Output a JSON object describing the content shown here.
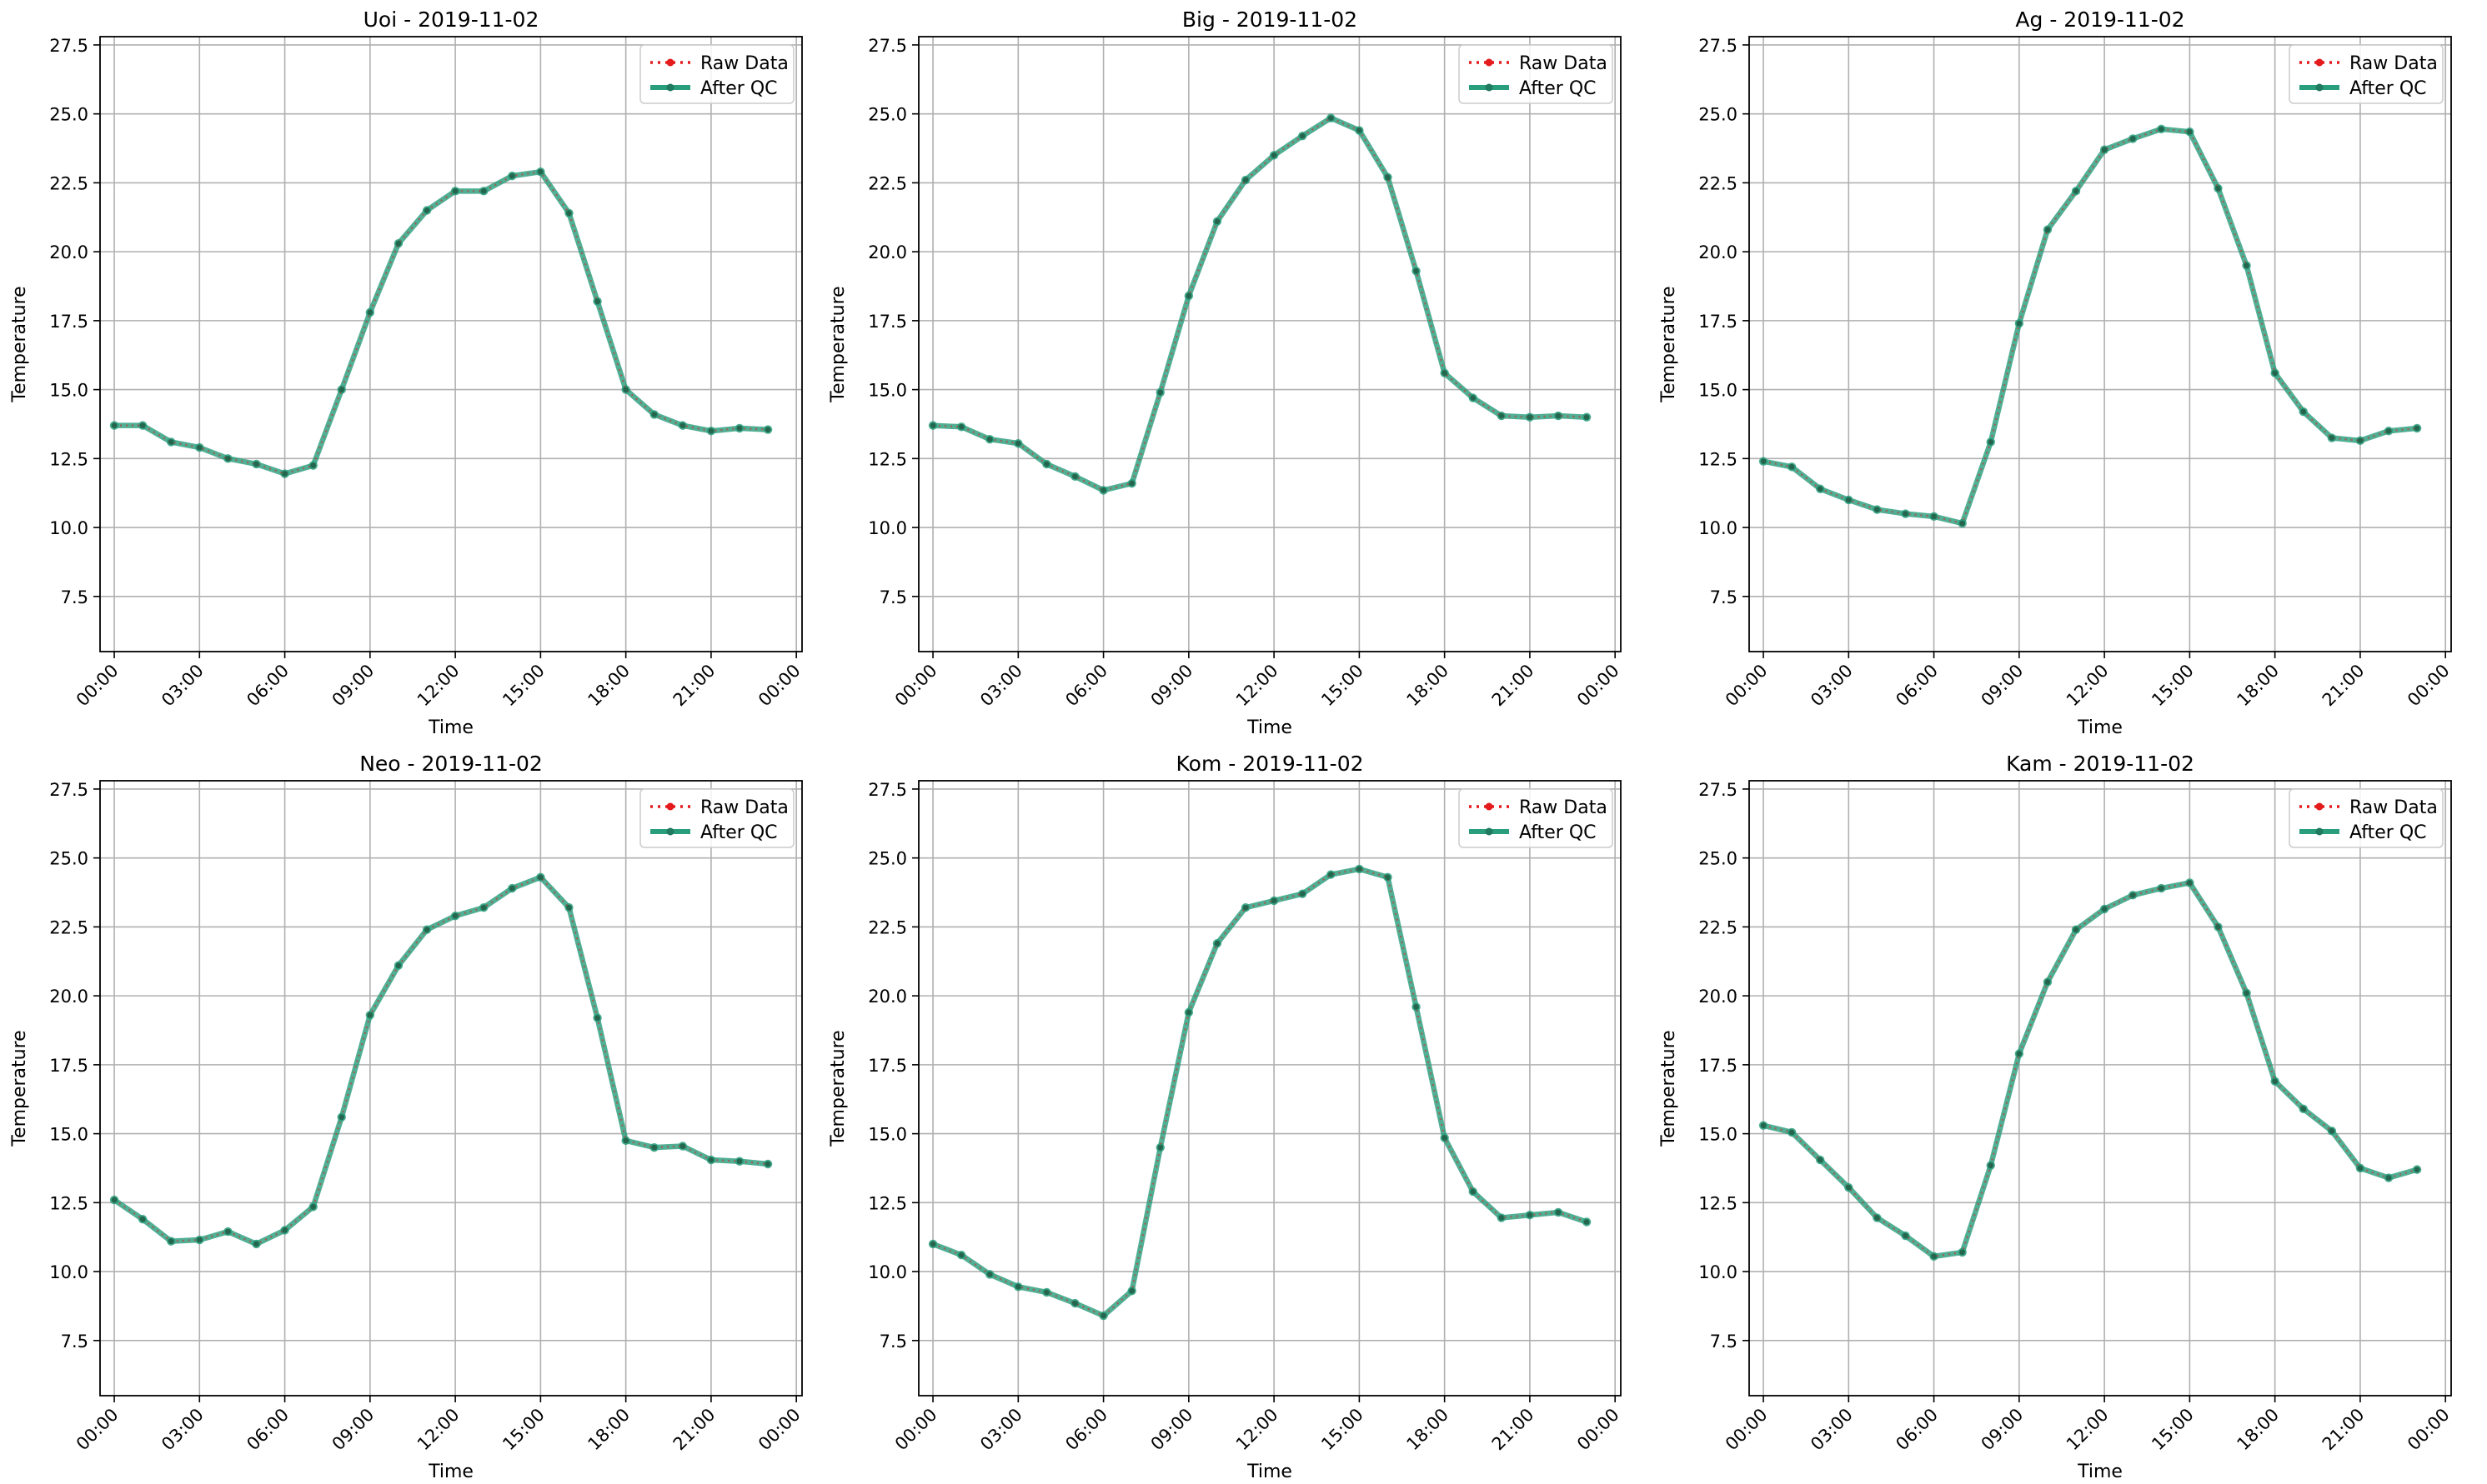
{
  "figure": {
    "xlabel": "Time",
    "ylabel": "Temperature",
    "legend": {
      "raw_label": "Raw Data",
      "qc_label": "After QC",
      "placement": "top-right"
    },
    "colors": {
      "raw": "#e41a1c",
      "qc": "#2a9d7c",
      "grid": "#b0b0b0",
      "axis": "#000000"
    }
  },
  "chart_data": [
    {
      "type": "line",
      "title": "Uoi - 2019-11-02",
      "xlabel": "Time",
      "ylabel": "Temperature",
      "x": [
        "00:00",
        "01:00",
        "02:00",
        "03:00",
        "04:00",
        "05:00",
        "06:00",
        "07:00",
        "08:00",
        "09:00",
        "10:00",
        "11:00",
        "12:00",
        "13:00",
        "14:00",
        "15:00",
        "16:00",
        "17:00",
        "18:00",
        "19:00",
        "20:00",
        "21:00",
        "22:00",
        "23:00"
      ],
      "xticks": [
        "00:00",
        "03:00",
        "06:00",
        "09:00",
        "12:00",
        "15:00",
        "18:00",
        "21:00",
        "00:00"
      ],
      "xlim_hours": [
        -0.5,
        24.2
      ],
      "ylim": [
        5.5,
        27.8
      ],
      "yticks": [
        "7.5",
        "10.0",
        "12.5",
        "15.0",
        "17.5",
        "20.0",
        "22.5",
        "25.0",
        "27.5"
      ],
      "grid": true,
      "legend": "top-right",
      "series": [
        {
          "name": "Raw Data",
          "values": [
            13.7,
            13.7,
            13.1,
            12.9,
            12.5,
            12.3,
            11.95,
            12.25,
            15.0,
            17.8,
            20.3,
            21.5,
            22.2,
            22.2,
            22.75,
            22.9,
            21.4,
            18.2,
            15.0,
            14.1,
            13.7,
            13.5,
            13.6,
            13.55
          ]
        },
        {
          "name": "After QC",
          "values": [
            13.7,
            13.7,
            13.1,
            12.9,
            12.5,
            12.3,
            11.95,
            12.25,
            15.0,
            17.8,
            20.3,
            21.5,
            22.2,
            22.2,
            22.75,
            22.9,
            21.4,
            18.2,
            15.0,
            14.1,
            13.7,
            13.5,
            13.6,
            13.55
          ]
        }
      ]
    },
    {
      "type": "line",
      "title": "Big - 2019-11-02",
      "xlabel": "Time",
      "ylabel": "Temperature",
      "x": [
        "00:00",
        "01:00",
        "02:00",
        "03:00",
        "04:00",
        "05:00",
        "06:00",
        "07:00",
        "08:00",
        "09:00",
        "10:00",
        "11:00",
        "12:00",
        "13:00",
        "14:00",
        "15:00",
        "16:00",
        "17:00",
        "18:00",
        "19:00",
        "20:00",
        "21:00",
        "22:00",
        "23:00"
      ],
      "xticks": [
        "00:00",
        "03:00",
        "06:00",
        "09:00",
        "12:00",
        "15:00",
        "18:00",
        "21:00",
        "00:00"
      ],
      "xlim_hours": [
        -0.5,
        24.2
      ],
      "ylim": [
        5.5,
        27.8
      ],
      "yticks": [
        "7.5",
        "10.0",
        "12.5",
        "15.0",
        "17.5",
        "20.0",
        "22.5",
        "25.0",
        "27.5"
      ],
      "grid": true,
      "legend": "top-right",
      "series": [
        {
          "name": "Raw Data",
          "values": [
            13.7,
            13.65,
            13.2,
            13.05,
            12.3,
            11.85,
            11.35,
            11.6,
            14.9,
            18.4,
            21.1,
            22.6,
            23.5,
            24.2,
            24.85,
            24.4,
            22.7,
            19.3,
            15.6,
            14.7,
            14.05,
            14.0,
            14.05,
            14.0
          ]
        },
        {
          "name": "After QC",
          "values": [
            13.7,
            13.65,
            13.2,
            13.05,
            12.3,
            11.85,
            11.35,
            11.6,
            14.9,
            18.4,
            21.1,
            22.6,
            23.5,
            24.2,
            24.85,
            24.4,
            22.7,
            19.3,
            15.6,
            14.7,
            14.05,
            14.0,
            14.05,
            14.0
          ]
        }
      ]
    },
    {
      "type": "line",
      "title": "Ag - 2019-11-02",
      "xlabel": "Time",
      "ylabel": "Temperature",
      "x": [
        "00:00",
        "01:00",
        "02:00",
        "03:00",
        "04:00",
        "05:00",
        "06:00",
        "07:00",
        "08:00",
        "09:00",
        "10:00",
        "11:00",
        "12:00",
        "13:00",
        "14:00",
        "15:00",
        "16:00",
        "17:00",
        "18:00",
        "19:00",
        "20:00",
        "21:00",
        "22:00",
        "23:00"
      ],
      "xticks": [
        "00:00",
        "03:00",
        "06:00",
        "09:00",
        "12:00",
        "15:00",
        "18:00",
        "21:00",
        "00:00"
      ],
      "xlim_hours": [
        -0.5,
        24.2
      ],
      "ylim": [
        5.5,
        27.8
      ],
      "yticks": [
        "7.5",
        "10.0",
        "12.5",
        "15.0",
        "17.5",
        "20.0",
        "22.5",
        "25.0",
        "27.5"
      ],
      "grid": true,
      "legend": "top-right",
      "series": [
        {
          "name": "Raw Data",
          "values": [
            12.4,
            12.2,
            11.4,
            11.0,
            10.65,
            10.5,
            10.4,
            10.15,
            13.1,
            17.4,
            20.8,
            22.2,
            23.7,
            24.1,
            24.45,
            24.35,
            22.3,
            19.5,
            15.6,
            14.2,
            13.25,
            13.15,
            13.5,
            13.6
          ]
        },
        {
          "name": "After QC",
          "values": [
            12.4,
            12.2,
            11.4,
            11.0,
            10.65,
            10.5,
            10.4,
            10.15,
            13.1,
            17.4,
            20.8,
            22.2,
            23.7,
            24.1,
            24.45,
            24.35,
            22.3,
            19.5,
            15.6,
            14.2,
            13.25,
            13.15,
            13.5,
            13.6
          ]
        }
      ]
    },
    {
      "type": "line",
      "title": "Neo - 2019-11-02",
      "xlabel": "Time",
      "ylabel": "Temperature",
      "x": [
        "00:00",
        "01:00",
        "02:00",
        "03:00",
        "04:00",
        "05:00",
        "06:00",
        "07:00",
        "08:00",
        "09:00",
        "10:00",
        "11:00",
        "12:00",
        "13:00",
        "14:00",
        "15:00",
        "16:00",
        "17:00",
        "18:00",
        "19:00",
        "20:00",
        "21:00",
        "22:00",
        "23:00"
      ],
      "xticks": [
        "00:00",
        "03:00",
        "06:00",
        "09:00",
        "12:00",
        "15:00",
        "18:00",
        "21:00",
        "00:00"
      ],
      "xlim_hours": [
        -0.5,
        24.2
      ],
      "ylim": [
        5.5,
        27.8
      ],
      "yticks": [
        "7.5",
        "10.0",
        "12.5",
        "15.0",
        "17.5",
        "20.0",
        "22.5",
        "25.0",
        "27.5"
      ],
      "grid": true,
      "legend": "top-right",
      "series": [
        {
          "name": "Raw Data",
          "values": [
            12.6,
            11.9,
            11.1,
            11.15,
            11.45,
            11.0,
            11.5,
            12.35,
            15.6,
            19.3,
            21.1,
            22.4,
            22.9,
            23.2,
            23.9,
            24.3,
            23.2,
            19.2,
            14.75,
            14.5,
            14.55,
            14.05,
            14.0,
            13.9
          ]
        },
        {
          "name": "After QC",
          "values": [
            12.6,
            11.9,
            11.1,
            11.15,
            11.45,
            11.0,
            11.5,
            12.35,
            15.6,
            19.3,
            21.1,
            22.4,
            22.9,
            23.2,
            23.9,
            24.3,
            23.2,
            19.2,
            14.75,
            14.5,
            14.55,
            14.05,
            14.0,
            13.9
          ]
        }
      ]
    },
    {
      "type": "line",
      "title": "Kom - 2019-11-02",
      "xlabel": "Time",
      "ylabel": "Temperature",
      "x": [
        "00:00",
        "01:00",
        "02:00",
        "03:00",
        "04:00",
        "05:00",
        "06:00",
        "07:00",
        "08:00",
        "09:00",
        "10:00",
        "11:00",
        "12:00",
        "13:00",
        "14:00",
        "15:00",
        "16:00",
        "17:00",
        "18:00",
        "19:00",
        "20:00",
        "21:00",
        "22:00",
        "23:00"
      ],
      "xticks": [
        "00:00",
        "03:00",
        "06:00",
        "09:00",
        "12:00",
        "15:00",
        "18:00",
        "21:00",
        "00:00"
      ],
      "xlim_hours": [
        -0.5,
        24.2
      ],
      "ylim": [
        5.5,
        27.8
      ],
      "yticks": [
        "7.5",
        "10.0",
        "12.5",
        "15.0",
        "17.5",
        "20.0",
        "22.5",
        "25.0",
        "27.5"
      ],
      "grid": true,
      "legend": "top-right",
      "series": [
        {
          "name": "Raw Data",
          "values": [
            11.0,
            10.6,
            9.9,
            9.45,
            9.25,
            8.85,
            8.4,
            9.3,
            14.5,
            19.4,
            21.9,
            23.2,
            23.45,
            23.7,
            24.4,
            24.6,
            24.3,
            19.6,
            14.85,
            12.9,
            11.95,
            12.05,
            12.15,
            11.8
          ]
        },
        {
          "name": "After QC",
          "values": [
            11.0,
            10.6,
            9.9,
            9.45,
            9.25,
            8.85,
            8.4,
            9.3,
            14.5,
            19.4,
            21.9,
            23.2,
            23.45,
            23.7,
            24.4,
            24.6,
            24.3,
            19.6,
            14.85,
            12.9,
            11.95,
            12.05,
            12.15,
            11.8
          ]
        }
      ]
    },
    {
      "type": "line",
      "title": "Kam - 2019-11-02",
      "xlabel": "Time",
      "ylabel": "Temperature",
      "x": [
        "00:00",
        "01:00",
        "02:00",
        "03:00",
        "04:00",
        "05:00",
        "06:00",
        "07:00",
        "08:00",
        "09:00",
        "10:00",
        "11:00",
        "12:00",
        "13:00",
        "14:00",
        "15:00",
        "16:00",
        "17:00",
        "18:00",
        "19:00",
        "20:00",
        "21:00",
        "22:00",
        "23:00"
      ],
      "xticks": [
        "00:00",
        "03:00",
        "06:00",
        "09:00",
        "12:00",
        "15:00",
        "18:00",
        "21:00",
        "00:00"
      ],
      "xlim_hours": [
        -0.5,
        24.2
      ],
      "ylim": [
        5.5,
        27.8
      ],
      "yticks": [
        "7.5",
        "10.0",
        "12.5",
        "15.0",
        "17.5",
        "20.0",
        "22.5",
        "25.0",
        "27.5"
      ],
      "grid": true,
      "legend": "top-right",
      "series": [
        {
          "name": "Raw Data",
          "values": [
            15.3,
            15.05,
            14.05,
            13.05,
            11.95,
            11.3,
            10.55,
            10.7,
            13.85,
            17.9,
            20.5,
            22.4,
            23.15,
            23.65,
            23.9,
            24.1,
            22.5,
            20.1,
            16.9,
            15.9,
            15.1,
            13.75,
            13.4,
            13.7
          ]
        },
        {
          "name": "After QC",
          "values": [
            15.3,
            15.05,
            14.05,
            13.05,
            11.95,
            11.3,
            10.55,
            10.7,
            13.85,
            17.9,
            20.5,
            22.4,
            23.15,
            23.65,
            23.9,
            24.1,
            22.5,
            20.1,
            16.9,
            15.9,
            15.1,
            13.75,
            13.4,
            13.7
          ]
        }
      ]
    }
  ]
}
